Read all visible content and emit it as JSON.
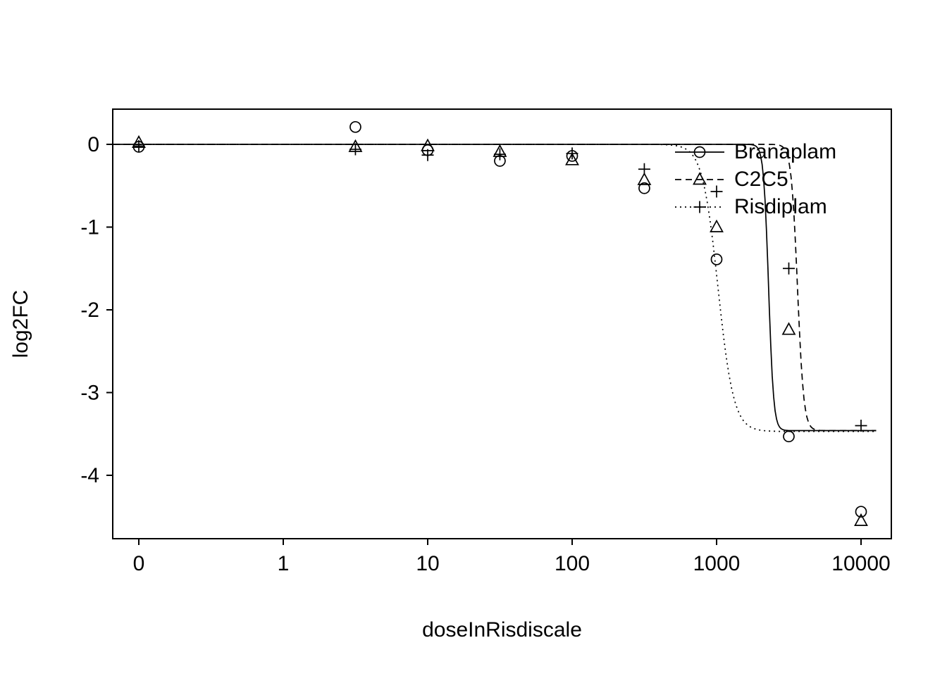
{
  "chart_data": {
    "type": "scatter",
    "title": "",
    "xlabel": "doseInRisdiscale",
    "ylabel": "log2FC",
    "x_tick_labels": [
      "0",
      "1",
      "10",
      "100",
      "1000",
      "10000"
    ],
    "x_scale_note": "dose 0 plotted at first tick; other doses on log10 scale, one decade per tick",
    "y_tick_values": [
      0,
      -1,
      -2,
      -3,
      -4
    ],
    "y_tick_labels": [
      "0",
      "-1",
      "-2",
      "-3",
      "-4"
    ],
    "ylim": [
      -4.77,
      0.43
    ],
    "grid": false,
    "legend": {
      "position": "top-right-inside",
      "labels": [
        "Branaplam",
        "C2C5",
        "Risdiplam"
      ]
    },
    "series": [
      {
        "name": "Branaplam",
        "symbol": "circle",
        "linestyle": "solid",
        "points": [
          [
            0,
            -0.03
          ],
          [
            3.16,
            0.21
          ],
          [
            10,
            -0.07
          ],
          [
            31.6,
            -0.2
          ],
          [
            100,
            -0.14
          ],
          [
            316,
            -0.53
          ],
          [
            1000,
            -1.39
          ],
          [
            3162,
            -3.53
          ],
          [
            10000,
            -4.44
          ]
        ],
        "curve": {
          "top": 0,
          "bottom": -3.46,
          "log10_ec50": 3.36,
          "hill": 25
        }
      },
      {
        "name": "C2C5",
        "symbol": "triangle",
        "linestyle": "dashed",
        "points": [
          [
            0,
            0.02
          ],
          [
            3.16,
            -0.03
          ],
          [
            10,
            -0.02
          ],
          [
            31.6,
            -0.09
          ],
          [
            100,
            -0.19
          ],
          [
            316,
            -0.43
          ],
          [
            1000,
            -1.0
          ],
          [
            3162,
            -2.24
          ],
          [
            10000,
            -4.55
          ]
        ],
        "curve": {
          "top": 0,
          "bottom": -3.46,
          "log10_ec50": 3.56,
          "hill": 20
        }
      },
      {
        "name": "Risdiplam",
        "symbol": "plus",
        "linestyle": "dotted",
        "points": [
          [
            0,
            -0.02
          ],
          [
            3.16,
            -0.06
          ],
          [
            10,
            -0.13
          ],
          [
            31.6,
            -0.12
          ],
          [
            100,
            -0.11
          ],
          [
            316,
            -0.3
          ],
          [
            1000,
            -0.57
          ],
          [
            3162,
            -1.5
          ],
          [
            10000,
            -3.4
          ]
        ],
        "curve": {
          "top": 0,
          "bottom": -3.47,
          "log10_ec50": 3.01,
          "hill": 8
        }
      }
    ]
  }
}
